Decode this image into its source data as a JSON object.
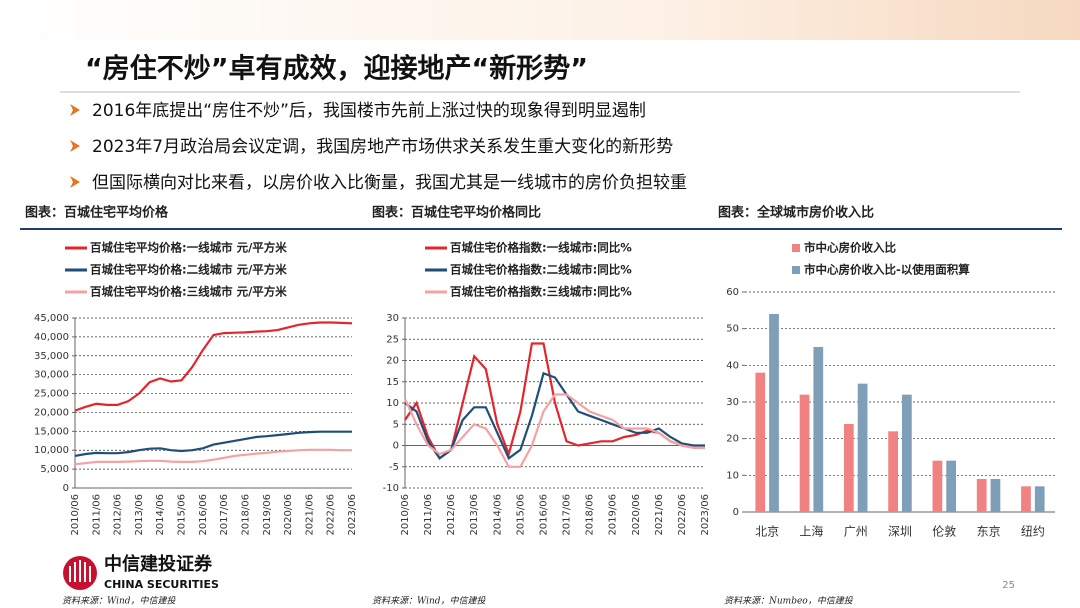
{
  "header": {
    "title": "“房住不炒”卓有成效，迎接地产“新形势”",
    "bullets": [
      "2016年底提出“房住不炒”后，我国楼市先前上涨过快的现象得到明显遏制",
      "2023年7月政治局会议定调，我国房地产市场供求关系发生重大变化的新形势",
      "但国际横向对比来看，以房价收入比衡量，我国尤其是一线城市的房价负担较重"
    ]
  },
  "captions": [
    "图表：百城住宅平均价格",
    "图表：百城住宅平均价格同比",
    "图表：全球城市房价收入比"
  ],
  "sources": [
    "资料来源：Wind，中信建投",
    "资料来源：Wind，中信建投",
    "资料来源：Numbeo，中信建投"
  ],
  "logo": {
    "name": "中信建投证券",
    "english": "CHINA SECURITIES"
  },
  "page_number": "25",
  "chart_data": [
    {
      "type": "line",
      "grid": true,
      "categories": [
        "2010/06",
        null,
        "2011/06",
        null,
        "2012/06",
        null,
        "2013/06",
        null,
        "2014/06",
        null,
        "2015/06",
        null,
        "2016/06",
        null,
        "2017/06",
        null,
        "2018/06",
        null,
        "2019/06",
        null,
        "2020/06",
        null,
        "2021/06",
        null,
        "2022/06",
        null,
        "2023/06"
      ],
      "series": [
        {
          "name": "百城住宅平均价格:一线城市 元/平方米",
          "color": "#e3262b",
          "values": [
            20500,
            21500,
            22300,
            22000,
            22000,
            23000,
            25000,
            28000,
            29000,
            28200,
            28500,
            32000,
            36500,
            40500,
            41000,
            41100,
            41200,
            41400,
            41500,
            41800,
            42500,
            43200,
            43600,
            43800,
            43800,
            43700,
            43600
          ]
        },
        {
          "name": "百城住宅平均价格:二线城市 元/平方米",
          "color": "#1f4e79",
          "values": [
            8500,
            9000,
            9300,
            9200,
            9200,
            9500,
            10000,
            10400,
            10500,
            10000,
            9800,
            10000,
            10500,
            11500,
            12000,
            12500,
            13000,
            13500,
            13700,
            14000,
            14300,
            14600,
            14800,
            14900,
            14900,
            14900,
            14900
          ]
        },
        {
          "name": "百城住宅平均价格:三线城市 元/平方米",
          "color": "#f4a3a3",
          "values": [
            6300,
            6600,
            6900,
            6900,
            6900,
            7000,
            7100,
            7200,
            7200,
            7000,
            6900,
            6900,
            7100,
            7500,
            8000,
            8500,
            8800,
            9100,
            9300,
            9600,
            9800,
            10000,
            10100,
            10100,
            10100,
            10000,
            10000
          ]
        }
      ],
      "ylim": [
        0,
        45000
      ],
      "yticks": [
        0,
        {
          "value": 5000,
          "label": "5,000"
        },
        {
          "value": 10000,
          "label": "10,000"
        },
        {
          "value": 15000,
          "label": "15,000"
        },
        {
          "value": 20000,
          "label": "20,000"
        },
        {
          "value": 25000,
          "label": "25,000"
        },
        {
          "value": 30000,
          "label": "30,000"
        },
        {
          "value": 35000,
          "label": "35,000"
        },
        {
          "value": 40000,
          "label": "40,000"
        },
        {
          "value": 45000,
          "label": "45,000"
        }
      ]
    },
    {
      "type": "line",
      "grid": true,
      "categories": [
        "2010/06",
        null,
        "2011/06",
        null,
        "2012/06",
        null,
        "2013/06",
        null,
        "2014/06",
        null,
        "2015/06",
        null,
        "2016/06",
        null,
        "2017/06",
        null,
        "2018/06",
        null,
        "2019/06",
        null,
        "2020/06",
        null,
        "2021/06",
        null,
        "2022/06",
        null,
        "2023/06"
      ],
      "series": [
        {
          "name": "百城住宅价格指数:一线城市:同比%",
          "color": "#e3262b",
          "values": [
            6,
            10,
            2,
            -3,
            -1,
            10,
            21,
            18,
            5,
            -2,
            8,
            24,
            24,
            10,
            1,
            0,
            0.5,
            1,
            1,
            2,
            2.5,
            3.5,
            3,
            1,
            0,
            -0.5,
            -0.5
          ]
        },
        {
          "name": "百城住宅价格指数:二线城市:同比%",
          "color": "#1f4e79",
          "values": [
            10,
            8,
            1,
            -3,
            -1,
            6,
            9,
            9,
            3,
            -3,
            -1,
            7,
            17,
            16,
            12,
            8,
            7,
            6,
            5,
            4,
            3,
            3,
            4,
            2,
            0.5,
            0,
            0
          ]
        },
        {
          "name": "百城住宅价格指数:三线城市:同比%",
          "color": "#f4a3a3",
          "values": [
            11,
            5,
            0,
            -2,
            -1,
            2,
            5,
            4,
            0,
            -5,
            -5,
            0,
            8,
            12,
            12,
            10,
            8,
            7,
            6,
            4,
            4,
            4,
            3,
            1,
            0,
            -0.5,
            -0.5
          ]
        }
      ],
      "ylim": [
        -10,
        30
      ],
      "yticks": [
        -10,
        -5,
        0,
        5,
        10,
        15,
        20,
        25,
        30
      ]
    },
    {
      "type": "bar",
      "grid": true,
      "categories": [
        "北京",
        "上海",
        "广州",
        "深圳",
        "伦敦",
        "东京",
        "纽约"
      ],
      "series": [
        {
          "name": "市中心房价收入比",
          "color": "#f08282",
          "values": [
            38,
            32,
            24,
            22,
            14,
            9,
            7
          ]
        },
        {
          "name": "市中心房价收入比-以使用面积算",
          "color": "#7f9fb8",
          "values": [
            54,
            45,
            35,
            32,
            14,
            9,
            7
          ]
        }
      ],
      "ylim": [
        0,
        60
      ],
      "yticks": [
        0,
        10,
        20,
        30,
        40,
        50,
        60
      ]
    }
  ]
}
